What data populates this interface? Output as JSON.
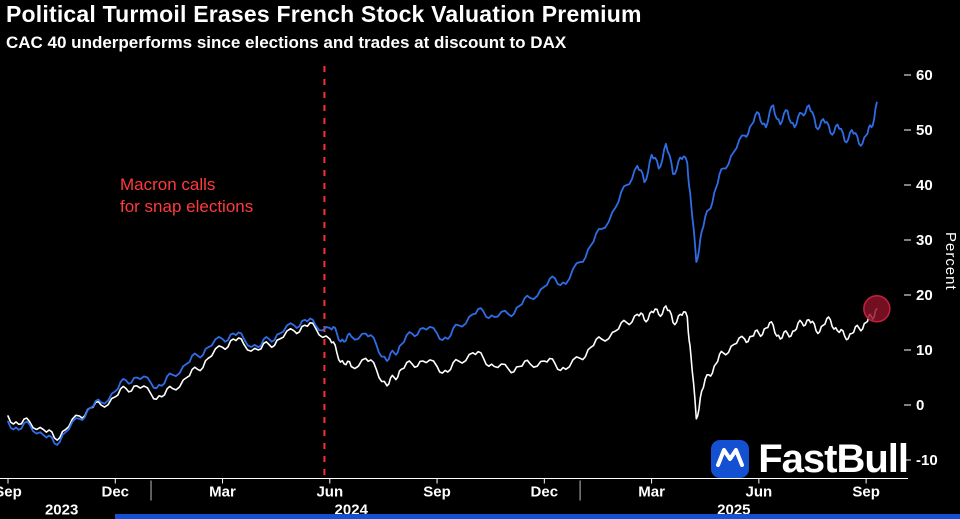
{
  "watermark": {
    "text": "FastBull"
  },
  "colors": {
    "background": "#000000",
    "dax_line": "#2e6de6",
    "cac_line": "#ffffff",
    "event_red": "#ff2f2f",
    "annotation_red": "#ff3b3b",
    "endpoint_fill": "#8e1228",
    "endpoint_stroke": "#c2203c",
    "axis_text": "#ffffff",
    "brand_blue": "#1450d2"
  },
  "chart_data": {
    "type": "line",
    "title": "Political Turmoil Erases French Stock Valuation Premium",
    "subtitle": "CAC 40 underperforms since elections and trades at discount to DAX",
    "ylabel": "Percent",
    "xlabel": "",
    "x_unit": "months since Sep 2023",
    "x_start": "2023-09",
    "x_end": "2025-09",
    "xlim": [
      0,
      24.5
    ],
    "ylim": [
      -10,
      60
    ],
    "grid": false,
    "legend": "none",
    "y_ticks": [
      60,
      50,
      40,
      30,
      20,
      10,
      0,
      -10
    ],
    "x_ticks": [
      {
        "m": 0,
        "label": "Sep"
      },
      {
        "m": 3,
        "label": "Dec"
      },
      {
        "m": 6,
        "label": "Mar"
      },
      {
        "m": 9,
        "label": "Jun"
      },
      {
        "m": 12,
        "label": "Sep"
      },
      {
        "m": 15,
        "label": "Dec"
      },
      {
        "m": 18,
        "label": "Mar"
      },
      {
        "m": 21,
        "label": "Jun"
      },
      {
        "m": 24,
        "label": "Sep"
      }
    ],
    "year_labels": [
      {
        "m": 1.5,
        "label": "2023"
      },
      {
        "m": 9.6,
        "label": "2024"
      },
      {
        "m": 20.3,
        "label": "2025"
      }
    ],
    "year_boundaries": [
      4,
      16
    ],
    "event_line": {
      "m": 8.85,
      "style": "dashed",
      "color_key": "event_red"
    },
    "annotation": {
      "line1": "Macron calls",
      "line2": "for snap elections"
    },
    "series": [
      {
        "name": "CAC 40",
        "color_key": "cac_line",
        "endpoint_marker": true,
        "points": [
          [
            0,
            -2
          ],
          [
            0.3,
            -3.5
          ],
          [
            0.6,
            -3
          ],
          [
            1,
            -4.5
          ],
          [
            1.3,
            -6
          ],
          [
            1.6,
            -4.5
          ],
          [
            2,
            -2
          ],
          [
            2.3,
            -0.5
          ],
          [
            2.6,
            0
          ],
          [
            3,
            1.5
          ],
          [
            3.3,
            3
          ],
          [
            3.6,
            3.5
          ],
          [
            4,
            2
          ],
          [
            4.3,
            1.5
          ],
          [
            4.6,
            3
          ],
          [
            5,
            5
          ],
          [
            5.3,
            6.5
          ],
          [
            5.6,
            8.5
          ],
          [
            6,
            10.5
          ],
          [
            6.3,
            12
          ],
          [
            6.6,
            11
          ],
          [
            7,
            10
          ],
          [
            7.3,
            11
          ],
          [
            7.6,
            12
          ],
          [
            8,
            13.5
          ],
          [
            8.3,
            14.5
          ],
          [
            8.6,
            14
          ],
          [
            9,
            12
          ],
          [
            9.2,
            9.5
          ],
          [
            9.4,
            7.5
          ],
          [
            9.6,
            7
          ],
          [
            10,
            8.5
          ],
          [
            10.3,
            6.5
          ],
          [
            10.6,
            3.5
          ],
          [
            10.8,
            5
          ],
          [
            11,
            6.5
          ],
          [
            11.3,
            7.5
          ],
          [
            11.6,
            8
          ],
          [
            12,
            7
          ],
          [
            12.3,
            6
          ],
          [
            12.6,
            8
          ],
          [
            13,
            9.5
          ],
          [
            13.3,
            8.5
          ],
          [
            13.6,
            7
          ],
          [
            14,
            6.5
          ],
          [
            14.3,
            7
          ],
          [
            14.6,
            7.5
          ],
          [
            15,
            8
          ],
          [
            15.3,
            7.5
          ],
          [
            15.6,
            6.5
          ],
          [
            16,
            8.5
          ],
          [
            16.3,
            10.5
          ],
          [
            16.6,
            12
          ],
          [
            17,
            13.5
          ],
          [
            17.3,
            15
          ],
          [
            17.6,
            16.5
          ],
          [
            17.8,
            15.5
          ],
          [
            18,
            17
          ],
          [
            18.2,
            16.5
          ],
          [
            18.4,
            18
          ],
          [
            18.6,
            15
          ],
          [
            18.8,
            16.5
          ],
          [
            19,
            16
          ],
          [
            19.1,
            9
          ],
          [
            19.25,
            -2.5
          ],
          [
            19.4,
            2.5
          ],
          [
            19.6,
            5.5
          ],
          [
            19.8,
            7.5
          ],
          [
            20,
            9.5
          ],
          [
            20.3,
            11
          ],
          [
            20.6,
            12
          ],
          [
            20.8,
            12.5
          ],
          [
            21,
            13
          ],
          [
            21.2,
            14
          ],
          [
            21.4,
            14.5
          ],
          [
            21.6,
            12
          ],
          [
            21.8,
            13
          ],
          [
            22,
            13.5
          ],
          [
            22.2,
            15
          ],
          [
            22.4,
            15.5
          ],
          [
            22.6,
            13.5
          ],
          [
            22.8,
            14.5
          ],
          [
            23,
            15.5
          ],
          [
            23.2,
            13.5
          ],
          [
            23.4,
            12.5
          ],
          [
            23.6,
            13
          ],
          [
            23.8,
            14
          ],
          [
            24,
            15
          ],
          [
            24.15,
            16
          ],
          [
            24.3,
            17.5
          ]
        ]
      },
      {
        "name": "DAX",
        "color_key": "dax_line",
        "endpoint_marker": false,
        "points": [
          [
            0,
            -3
          ],
          [
            0.3,
            -4.5
          ],
          [
            0.6,
            -3.5
          ],
          [
            1,
            -5.5
          ],
          [
            1.3,
            -7
          ],
          [
            1.6,
            -5
          ],
          [
            2,
            -2.5
          ],
          [
            2.3,
            -0.5
          ],
          [
            2.6,
            0.5
          ],
          [
            3,
            2.5
          ],
          [
            3.3,
            4.5
          ],
          [
            3.6,
            5
          ],
          [
            4,
            4
          ],
          [
            4.3,
            3.5
          ],
          [
            4.6,
            5.5
          ],
          [
            5,
            7.5
          ],
          [
            5.3,
            9
          ],
          [
            5.6,
            10.5
          ],
          [
            6,
            12
          ],
          [
            6.3,
            13
          ],
          [
            6.6,
            12
          ],
          [
            7,
            10.5
          ],
          [
            7.3,
            12
          ],
          [
            7.6,
            13
          ],
          [
            8,
            14.5
          ],
          [
            8.3,
            15.5
          ],
          [
            8.6,
            14.5
          ],
          [
            9,
            14
          ],
          [
            9.2,
            13
          ],
          [
            9.4,
            11.5
          ],
          [
            9.6,
            12.5
          ],
          [
            10,
            13
          ],
          [
            10.3,
            11
          ],
          [
            10.6,
            8
          ],
          [
            10.8,
            9.5
          ],
          [
            11,
            11
          ],
          [
            11.3,
            13
          ],
          [
            11.6,
            14
          ],
          [
            12,
            13
          ],
          [
            12.3,
            12
          ],
          [
            12.6,
            14.5
          ],
          [
            13,
            16.5
          ],
          [
            13.3,
            17
          ],
          [
            13.6,
            16
          ],
          [
            14,
            16.5
          ],
          [
            14.3,
            18
          ],
          [
            14.6,
            19.5
          ],
          [
            15,
            21.5
          ],
          [
            15.3,
            23
          ],
          [
            15.6,
            22
          ],
          [
            16,
            26
          ],
          [
            16.3,
            29
          ],
          [
            16.6,
            32
          ],
          [
            17,
            36
          ],
          [
            17.3,
            40
          ],
          [
            17.6,
            43.5
          ],
          [
            17.8,
            40.5
          ],
          [
            18,
            45.5
          ],
          [
            18.2,
            43
          ],
          [
            18.4,
            47.5
          ],
          [
            18.6,
            42
          ],
          [
            18.8,
            45
          ],
          [
            19,
            44
          ],
          [
            19.1,
            37
          ],
          [
            19.25,
            26
          ],
          [
            19.4,
            31.5
          ],
          [
            19.6,
            35.5
          ],
          [
            19.8,
            39.5
          ],
          [
            20,
            43
          ],
          [
            20.3,
            46
          ],
          [
            20.6,
            49
          ],
          [
            20.8,
            51
          ],
          [
            21,
            53
          ],
          [
            21.2,
            50.5
          ],
          [
            21.4,
            54.5
          ],
          [
            21.6,
            51
          ],
          [
            21.8,
            53.5
          ],
          [
            22,
            50.5
          ],
          [
            22.2,
            53
          ],
          [
            22.4,
            54.5
          ],
          [
            22.6,
            50.5
          ],
          [
            22.8,
            52
          ],
          [
            23,
            49.5
          ],
          [
            23.2,
            51
          ],
          [
            23.4,
            48
          ],
          [
            23.6,
            50
          ],
          [
            23.8,
            47.5
          ],
          [
            24,
            49
          ],
          [
            24.15,
            50.5
          ],
          [
            24.3,
            55
          ]
        ]
      }
    ]
  }
}
